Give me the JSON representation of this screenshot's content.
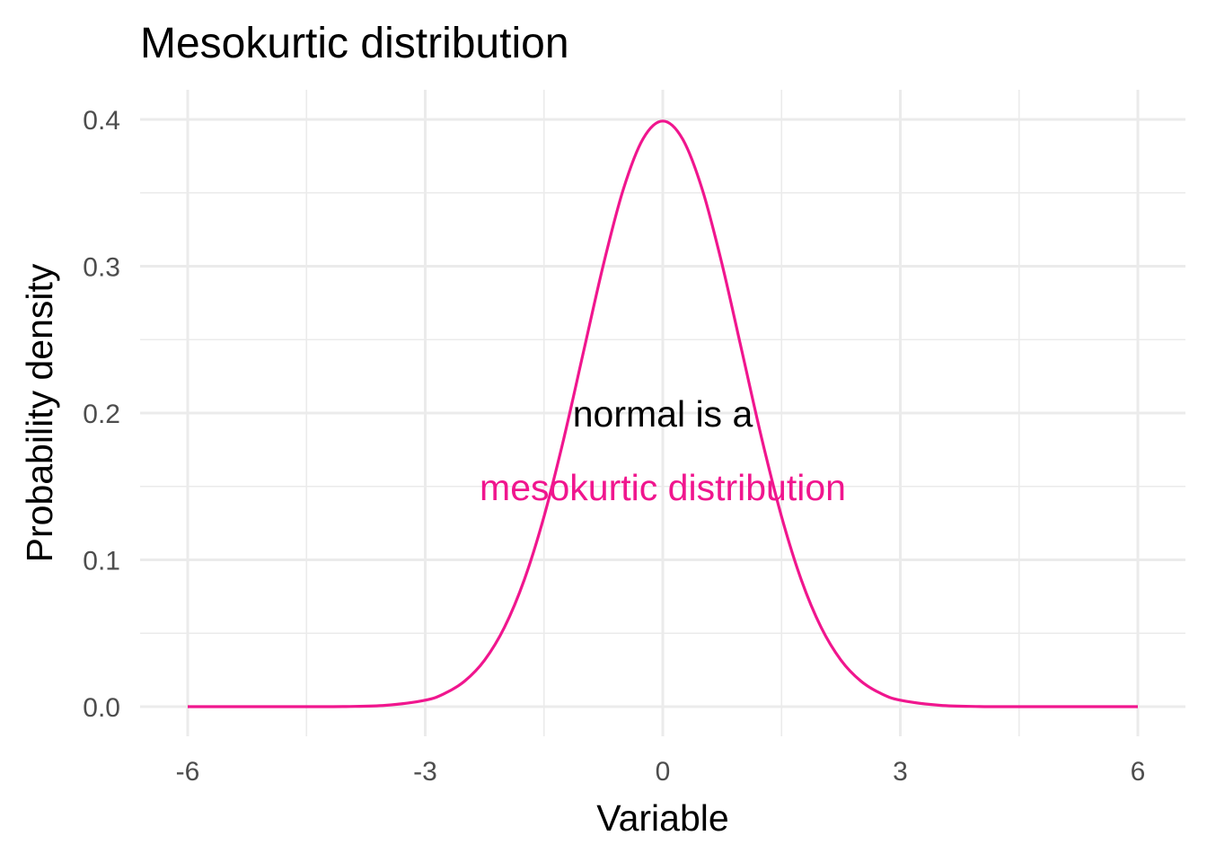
{
  "chart_data": {
    "type": "line",
    "title": "Mesokurtic distribution",
    "xlabel": "Variable",
    "ylabel": "Probability density",
    "xlim": [
      -6,
      6
    ],
    "ylim": [
      0,
      0.4
    ],
    "x_ticks": [
      -6,
      -3,
      0,
      3,
      6
    ],
    "x_tick_labels": [
      "-6",
      "-3",
      "0",
      "3",
      "6"
    ],
    "y_ticks": [
      0,
      0.1,
      0.2,
      0.3,
      0.4
    ],
    "y_tick_labels": [
      "0.0",
      "0.1",
      "0.2",
      "0.3",
      "0.4"
    ],
    "grid": true,
    "series": [
      {
        "color": "#f0168e",
        "x": [
          -6,
          -5.5,
          -5,
          -4.5,
          -4,
          -3.5,
          -3,
          -2.75,
          -2.5,
          -2.25,
          -2,
          -1.75,
          -1.5,
          -1.25,
          -1,
          -0.75,
          -0.5,
          -0.25,
          0,
          0.25,
          0.5,
          0.75,
          1,
          1.25,
          1.5,
          1.75,
          2,
          2.25,
          2.5,
          2.75,
          3,
          3.5,
          4,
          4.5,
          5,
          5.5,
          6
        ],
        "y": [
          0.0,
          0.0,
          0.0,
          0.0,
          0.0001,
          0.0009,
          0.0044,
          0.0091,
          0.0175,
          0.0317,
          0.054,
          0.0863,
          0.1295,
          0.1826,
          0.242,
          0.3011,
          0.3521,
          0.3867,
          0.3989,
          0.3867,
          0.3521,
          0.3011,
          0.242,
          0.1826,
          0.1295,
          0.0863,
          0.054,
          0.0317,
          0.0175,
          0.0091,
          0.0044,
          0.0009,
          0.0001,
          0.0,
          0.0,
          0.0,
          0.0
        ]
      }
    ],
    "annotations": [
      {
        "text": "normal is a",
        "x": 0,
        "y": 0.2,
        "color": "#000000"
      },
      {
        "text": "mesokurtic distribution",
        "x": 0,
        "y": 0.15,
        "color": "#f0168e"
      }
    ]
  }
}
